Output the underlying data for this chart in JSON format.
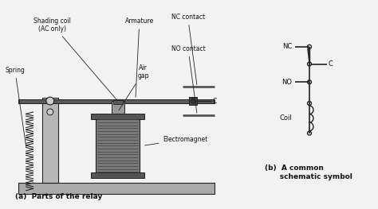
{
  "bg_color": "#f2f2f2",
  "label_a": "(a)  Parts of the relay",
  "label_b": "(b)  A common\n      schematic symbol",
  "schematic_labels": {
    "NC": "NC",
    "C": "C",
    "NO": "NO",
    "Coil": "Coil"
  },
  "diagram_labels": {
    "Spring": "Spring",
    "Shading_coil": "Shading coil\n(AC only)",
    "Armature": "Armature",
    "NC_contact": "NC contact",
    "C_label": "C",
    "NO_contact": "NO contact",
    "Air_gap": "Air\ngap",
    "Electromagnet": "Electromagnet"
  },
  "text_color": "#111111",
  "line_color": "#222222",
  "dark_gray": "#555555",
  "med_gray": "#888888",
  "light_gray": "#cccccc",
  "coil_body": "#777777",
  "base_color": "#aaaaaa",
  "support_color": "#bbbbbb"
}
